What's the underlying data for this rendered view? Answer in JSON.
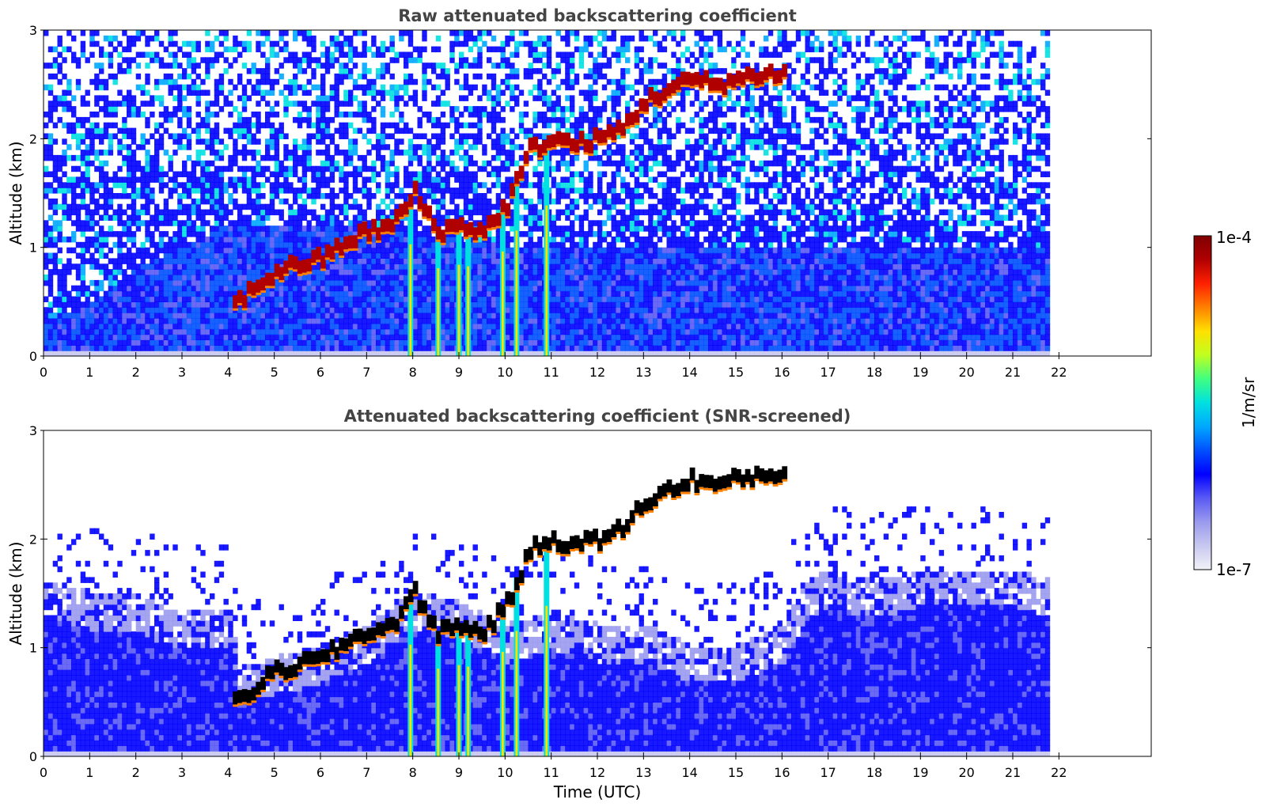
{
  "chart_data": [
    {
      "type": "heatmap",
      "title": "Raw attenuated backscattering coefficient",
      "xlabel": "",
      "ylabel": "Altitude (km)",
      "xlim": [
        0,
        24
      ],
      "ylim": [
        0,
        3
      ],
      "xticks": [
        "0",
        "1",
        "2",
        "3",
        "4",
        "5",
        "6",
        "7",
        "8",
        "9",
        "10",
        "11",
        "12",
        "13",
        "14",
        "15",
        "16",
        "17",
        "18",
        "19",
        "20",
        "21",
        "22"
      ],
      "yticks": [
        "0",
        "1",
        "2",
        "3"
      ],
      "data_extent_x": [
        0,
        21.8
      ],
      "screened": false,
      "cloud_layer": {
        "x": [
          4.1,
          4.5,
          5.0,
          5.5,
          6.0,
          6.5,
          7.0,
          7.5,
          8.0,
          8.5,
          9.0,
          9.5,
          10.0,
          10.5,
          11.0,
          11.5,
          12.0,
          12.5,
          13.0,
          13.5,
          14.0,
          14.5,
          15.0,
          15.5,
          16.1
        ],
        "y": [
          0.48,
          0.62,
          0.78,
          0.85,
          0.9,
          1.05,
          1.15,
          1.2,
          1.5,
          1.15,
          1.2,
          1.15,
          1.4,
          1.9,
          2.0,
          1.95,
          2.0,
          2.1,
          2.35,
          2.45,
          2.55,
          2.5,
          2.55,
          2.6,
          2.6
        ]
      },
      "precip_shafts_x": [
        7.95,
        8.55,
        9.0,
        9.2,
        9.95,
        10.25,
        10.9
      ],
      "boundary_layer_top": {
        "x": [
          0,
          1.2,
          2.0,
          3.0,
          4.0,
          6.0,
          8.0,
          10.0,
          12.0,
          14.0,
          16.0,
          18.0,
          20.0,
          21.8
        ],
        "y": [
          0.3,
          0.5,
          0.8,
          1.0,
          1.2,
          1.2,
          1.1,
          1.0,
          1.0,
          1.0,
          1.0,
          1.0,
          1.0,
          1.0
        ]
      }
    },
    {
      "type": "heatmap",
      "title": "Attenuated backscattering coefficient (SNR-screened)",
      "xlabel": "Time (UTC)",
      "ylabel": "Altitude (km)",
      "xlim": [
        0,
        24
      ],
      "ylim": [
        0,
        3
      ],
      "xticks": [
        "0",
        "1",
        "2",
        "3",
        "4",
        "5",
        "6",
        "7",
        "8",
        "9",
        "10",
        "11",
        "12",
        "13",
        "14",
        "15",
        "16",
        "17",
        "18",
        "19",
        "20",
        "21",
        "22"
      ],
      "yticks": [
        "0",
        "1",
        "2",
        "3"
      ],
      "data_extent_x": [
        0,
        21.8
      ],
      "screened": true,
      "cloud_layer": {
        "x": [
          4.1,
          4.5,
          5.0,
          5.5,
          6.0,
          6.5,
          7.0,
          7.5,
          8.0,
          8.5,
          9.0,
          9.5,
          10.0,
          10.5,
          11.0,
          11.5,
          12.0,
          12.5,
          13.0,
          13.5,
          14.0,
          14.5,
          15.0,
          15.5,
          16.1
        ],
        "y": [
          0.48,
          0.62,
          0.78,
          0.85,
          0.9,
          1.05,
          1.15,
          1.2,
          1.5,
          1.15,
          1.2,
          1.15,
          1.4,
          1.9,
          2.0,
          1.95,
          2.0,
          2.1,
          2.35,
          2.45,
          2.55,
          2.5,
          2.55,
          2.6,
          2.6
        ]
      },
      "precip_shafts_x": [
        7.95,
        8.55,
        9.0,
        9.2,
        9.95,
        10.25,
        10.9
      ],
      "signal_top": {
        "x": [
          0,
          1,
          2,
          3,
          4,
          4.2,
          5,
          6,
          7,
          8,
          9,
          10,
          11,
          12,
          13,
          14,
          15,
          16,
          16.5,
          17,
          18,
          19,
          20,
          21,
          21.8
        ],
        "y": [
          1.6,
          1.5,
          1.45,
          1.3,
          1.35,
          0.8,
          0.9,
          1.0,
          1.2,
          1.5,
          1.4,
          1.2,
          1.3,
          1.2,
          1.2,
          1.0,
          1.0,
          1.2,
          1.6,
          1.7,
          1.6,
          1.7,
          1.7,
          1.7,
          1.6
        ]
      }
    }
  ],
  "colorbar": {
    "min_label": "1e-7",
    "max_label": "1e-4",
    "unit_label": "1/m/sr",
    "scale": "log",
    "colormap": "jet",
    "colors": [
      "#f2f2f8",
      "#c8c8f0",
      "#9a9aee",
      "#5a5af4",
      "#0000ff",
      "#0050ff",
      "#00a8ff",
      "#00e0e0",
      "#40ff80",
      "#c0ff20",
      "#ffe000",
      "#ff8000",
      "#ff2000",
      "#b00000",
      "#7f0000"
    ]
  }
}
